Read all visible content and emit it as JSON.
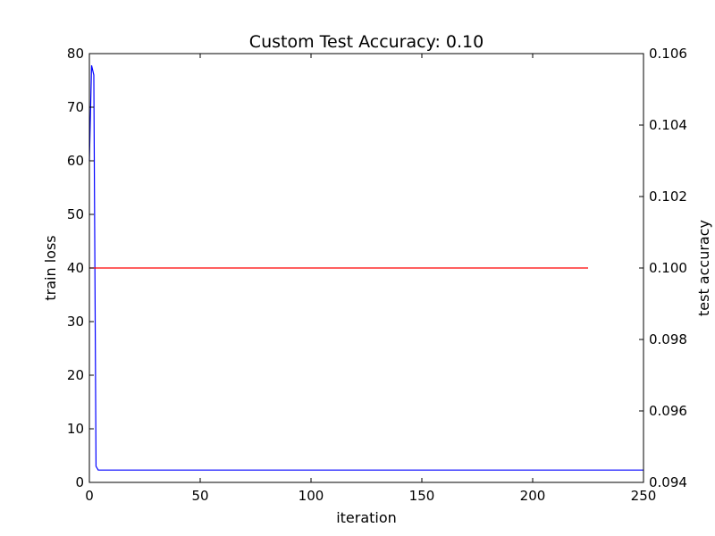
{
  "chart_data": {
    "type": "line",
    "title": "Custom Test Accuracy: 0.10",
    "xlabel": "iteration",
    "ylabel_left": "train loss",
    "ylabel_right": "test accuracy",
    "xlim": [
      0,
      250
    ],
    "ylim_left": [
      0,
      80
    ],
    "ylim_right": [
      0.094,
      0.106
    ],
    "x_ticks": [
      "0",
      "50",
      "100",
      "150",
      "200",
      "250"
    ],
    "y_ticks_left": [
      "0",
      "10",
      "20",
      "30",
      "40",
      "50",
      "60",
      "70",
      "80"
    ],
    "y_ticks_right": [
      "0.094",
      "0.096",
      "0.098",
      "0.100",
      "0.102",
      "0.104",
      "0.106"
    ],
    "grid": false,
    "series": [
      {
        "axis": "left",
        "color": "#0000ff",
        "x": [
          0,
          1,
          2,
          3,
          4,
          5,
          250
        ],
        "y": [
          60,
          77.8,
          76,
          3,
          2.3,
          2.3,
          2.3
        ]
      },
      {
        "axis": "right",
        "color": "#ff0000",
        "x": [
          0,
          225
        ],
        "y": [
          0.1,
          0.1
        ]
      }
    ]
  }
}
